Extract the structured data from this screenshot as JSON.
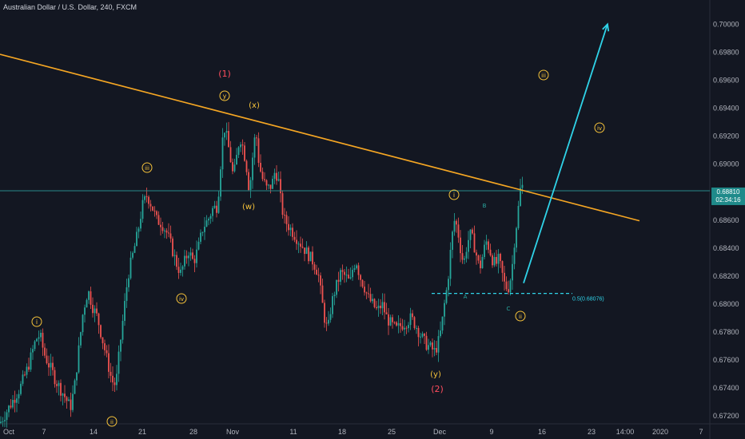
{
  "header": {
    "title": "Australian Dollar / U.S. Dollar, 240, FXCM"
  },
  "price_axis": {
    "ticks": [
      "0.70000",
      "0.69800",
      "0.69600",
      "0.69400",
      "0.69200",
      "0.69000",
      "0.68600",
      "0.68400",
      "0.68200",
      "0.68000",
      "0.67800",
      "0.67600",
      "0.67400",
      "0.67200"
    ],
    "current_price": "0.68810",
    "countdown": "02:34:16"
  },
  "time_axis": {
    "ticks": [
      "Oct",
      "7",
      "14",
      "21",
      "28",
      "Nov",
      "11",
      "18",
      "25",
      "Dec",
      "9",
      "16",
      "23",
      "14:00",
      "2020",
      "7"
    ]
  },
  "colors": {
    "background": "#131722",
    "up": "#26a69a",
    "down": "#ef5350",
    "trendline": "#f5a623",
    "arrow": "#2fd3e8",
    "price_line": "#2a8a8a",
    "label": "#f5c23a",
    "label_red": "#ff4d5e",
    "abc": "#2aa8a0",
    "price_tag": "#1f8a8a"
  },
  "annotations": {
    "wave_1": "(1)",
    "wave_2": "(2)",
    "w": "(w)",
    "x": "(x)",
    "y_small": "y",
    "y_paren": "(y)",
    "i_left": "i",
    "ii_left": "ii",
    "iii_left": "iii",
    "iv_left": "iv",
    "i_right": "i",
    "ii_right": "ii",
    "iii_right": "iii",
    "iv_right": "iv",
    "A": "A",
    "B": "B",
    "C": "C",
    "fib": "0.5(0.68076)"
  },
  "chart_data": {
    "type": "candlestick",
    "title": "Australian Dollar / U.S. Dollar, 240, FXCM",
    "ylim": [
      0.6715,
      0.7015
    ],
    "x_ticks": [
      "Oct",
      "7",
      "14",
      "21",
      "28",
      "Nov",
      "11",
      "18",
      "25",
      "Dec",
      "9",
      "16",
      "23",
      "14:00",
      "2020",
      "7"
    ],
    "y_ticks": [
      0.7,
      0.698,
      0.696,
      0.694,
      0.692,
      0.69,
      0.686,
      0.684,
      0.682,
      0.68,
      0.678,
      0.676,
      0.674,
      0.672
    ],
    "current_price": 0.6881,
    "price_path": [
      [
        0,
        0.6715
      ],
      [
        5,
        0.672
      ],
      [
        15,
        0.673
      ],
      [
        25,
        0.674
      ],
      [
        35,
        0.6755
      ],
      [
        45,
        0.6775
      ],
      [
        50,
        0.6778
      ],
      [
        55,
        0.6765
      ],
      [
        60,
        0.6758
      ],
      [
        65,
        0.6752
      ],
      [
        70,
        0.6745
      ],
      [
        75,
        0.674
      ],
      [
        80,
        0.6735
      ],
      [
        88,
        0.6726
      ],
      [
        93,
        0.674
      ],
      [
        98,
        0.6765
      ],
      [
        104,
        0.6795
      ],
      [
        110,
        0.681
      ],
      [
        116,
        0.6798
      ],
      [
        122,
        0.679
      ],
      [
        128,
        0.6775
      ],
      [
        134,
        0.676
      ],
      [
        140,
        0.6745
      ],
      [
        145,
        0.6742
      ],
      [
        150,
        0.677
      ],
      [
        155,
        0.6795
      ],
      [
        160,
        0.682
      ],
      [
        166,
        0.6835
      ],
      [
        172,
        0.685
      ],
      [
        178,
        0.687
      ],
      [
        184,
        0.6878
      ],
      [
        190,
        0.687
      ],
      [
        196,
        0.686
      ],
      [
        202,
        0.6858
      ],
      [
        208,
        0.6852
      ],
      [
        214,
        0.6842
      ],
      [
        220,
        0.683
      ],
      [
        226,
        0.6822
      ],
      [
        232,
        0.6832
      ],
      [
        236,
        0.6838
      ],
      [
        242,
        0.683
      ],
      [
        248,
        0.684
      ],
      [
        254,
        0.6855
      ],
      [
        260,
        0.686
      ],
      [
        266,
        0.6868
      ],
      [
        272,
        0.687
      ],
      [
        276,
        0.69
      ],
      [
        280,
        0.6928
      ],
      [
        284,
        0.6918
      ],
      [
        288,
        0.6905
      ],
      [
        292,
        0.689
      ],
      [
        296,
        0.6905
      ],
      [
        300,
        0.692
      ],
      [
        304,
        0.6912
      ],
      [
        308,
        0.69
      ],
      [
        312,
        0.688
      ],
      [
        316,
        0.6905
      ],
      [
        320,
        0.6925
      ],
      [
        324,
        0.69
      ],
      [
        328,
        0.689
      ],
      [
        334,
        0.6882
      ],
      [
        340,
        0.6885
      ],
      [
        344,
        0.6895
      ],
      [
        348,
        0.689
      ],
      [
        352,
        0.687
      ],
      [
        356,
        0.686
      ],
      [
        362,
        0.6855
      ],
      [
        368,
        0.685
      ],
      [
        374,
        0.6845
      ],
      [
        380,
        0.684
      ],
      [
        386,
        0.6835
      ],
      [
        392,
        0.683
      ],
      [
        398,
        0.6822
      ],
      [
        402,
        0.6805
      ],
      [
        406,
        0.679
      ],
      [
        410,
        0.678
      ],
      [
        414,
        0.6798
      ],
      [
        418,
        0.6808
      ],
      [
        422,
        0.6815
      ],
      [
        426,
        0.6822
      ],
      [
        432,
        0.682
      ],
      [
        438,
        0.6815
      ],
      [
        442,
        0.6828
      ],
      [
        446,
        0.683
      ],
      [
        450,
        0.682
      ],
      [
        456,
        0.6812
      ],
      [
        460,
        0.6805
      ],
      [
        466,
        0.68
      ],
      [
        472,
        0.6795
      ],
      [
        478,
        0.68
      ],
      [
        484,
        0.679
      ],
      [
        490,
        0.6785
      ],
      [
        496,
        0.6782
      ],
      [
        502,
        0.6785
      ],
      [
        508,
        0.6787
      ],
      [
        514,
        0.679
      ],
      [
        520,
        0.6785
      ],
      [
        526,
        0.6778
      ],
      [
        532,
        0.6772
      ],
      [
        536,
        0.677
      ],
      [
        540,
        0.6768
      ],
      [
        544,
        0.6766
      ],
      [
        548,
        0.6772
      ],
      [
        552,
        0.6782
      ],
      [
        556,
        0.68
      ],
      [
        560,
        0.6815
      ],
      [
        564,
        0.684
      ],
      [
        568,
        0.686
      ],
      [
        572,
        0.6855
      ],
      [
        576,
        0.684
      ],
      [
        580,
        0.6828
      ],
      [
        584,
        0.6842
      ],
      [
        588,
        0.685
      ],
      [
        592,
        0.6845
      ],
      [
        596,
        0.6835
      ],
      [
        600,
        0.6825
      ],
      [
        604,
        0.6835
      ],
      [
        608,
        0.6845
      ],
      [
        612,
        0.684
      ],
      [
        616,
        0.6832
      ],
      [
        620,
        0.6828
      ],
      [
        624,
        0.6832
      ],
      [
        628,
        0.6822
      ],
      [
        632,
        0.6812
      ],
      [
        636,
        0.6812
      ],
      [
        640,
        0.6822
      ],
      [
        644,
        0.6848
      ],
      [
        648,
        0.6865
      ],
      [
        650,
        0.688
      ],
      [
        653,
        0.6885
      ],
      [
        655,
        0.6881
      ]
    ],
    "trendline": {
      "from": [
        0,
        0.69785
      ],
      "to": [
        800,
        0.68595
      ]
    },
    "fib_level": {
      "label": "0.5(0.68076)",
      "value": 0.68076,
      "x_from": 540,
      "x_to": 716
    },
    "projection_arrow": {
      "from": [
        655,
        0.6815
      ],
      "to": [
        760,
        0.7
      ]
    }
  }
}
